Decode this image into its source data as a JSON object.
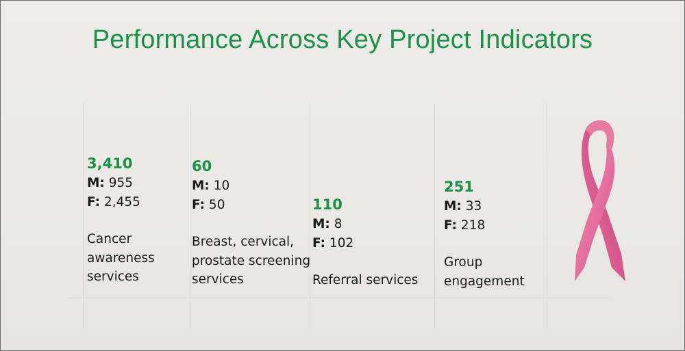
{
  "title": "Performance Across Key Project Indicators",
  "indicators": [
    {
      "total": "3,410",
      "m_label": "M:",
      "m_value": "955",
      "f_label": "F:",
      "f_value": "2,455",
      "desc_lines": [
        "Cancer",
        "awareness",
        "services"
      ]
    },
    {
      "total": "60",
      "m_label": "M:",
      "m_value": "10",
      "f_label": "F:",
      "f_value": "50",
      "desc_lines": [
        "Breast, cervical,",
        "prostate screening",
        "services"
      ]
    },
    {
      "total": "110",
      "m_label": "M:",
      "m_value": "8",
      "f_label": "F:",
      "f_value": "102",
      "desc_lines": [
        "Referral services"
      ]
    },
    {
      "total": "251",
      "m_label": "M:",
      "m_value": "33",
      "f_label": "F:",
      "f_value": "218",
      "desc_lines": [
        "Group",
        "engagement"
      ]
    }
  ],
  "ribbon_icon": "pink-ribbon-icon",
  "colors": {
    "accent_green": "#1a9145",
    "ribbon_pink": "#e46a9a"
  }
}
